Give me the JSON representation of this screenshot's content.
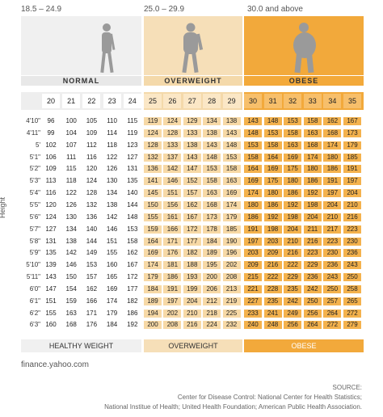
{
  "chart_data": {
    "type": "table",
    "ylabel": "Height",
    "categories": [
      {
        "range": "18.5 – 24.9",
        "label": "NORMAL",
        "footer": "HEALTHY WEIGHT",
        "color": "#f0f0f0",
        "header_color": "#e8e8e8",
        "cell_color": "#ffffff"
      },
      {
        "range": "25.0 – 29.9",
        "label": "OVERWEIGHT",
        "footer": "OVERWEIGHT",
        "color": "#f6dfb8",
        "header_color": "#f4d9aa",
        "cell_color": "#f7d9a6"
      },
      {
        "range": "30.0 and above",
        "label": "OBESE",
        "footer": "OBESE",
        "color": "#f2a93b",
        "header_color": "#f3a93a",
        "cell_color": "#f4b24d"
      }
    ],
    "bmi_values": [
      20,
      21,
      22,
      23,
      24,
      25,
      26,
      27,
      28,
      29,
      30,
      31,
      32,
      33,
      34,
      35
    ],
    "heights": [
      "4'10\"",
      "4'11\"",
      "5'",
      "5'1\"",
      "5'2\"",
      "5'3\"",
      "5'4\"",
      "5'5\"",
      "5'6\"",
      "5'7\"",
      "5'8\"",
      "5'9\"",
      "5'10\"",
      "5'11\"",
      "6'0\"",
      "6'1\"",
      "6'2\"",
      "6'3\""
    ],
    "weights": [
      [
        96,
        100,
        105,
        110,
        115,
        119,
        124,
        129,
        134,
        138,
        143,
        148,
        153,
        158,
        162,
        167
      ],
      [
        99,
        104,
        109,
        114,
        119,
        124,
        128,
        133,
        138,
        143,
        148,
        153,
        158,
        163,
        168,
        173
      ],
      [
        102,
        107,
        112,
        118,
        123,
        128,
        133,
        138,
        143,
        148,
        153,
        158,
        163,
        168,
        174,
        179
      ],
      [
        106,
        111,
        116,
        122,
        127,
        132,
        137,
        143,
        148,
        153,
        158,
        164,
        169,
        174,
        180,
        185
      ],
      [
        109,
        115,
        120,
        126,
        131,
        136,
        142,
        147,
        153,
        158,
        164,
        169,
        175,
        180,
        186,
        191
      ],
      [
        113,
        118,
        124,
        130,
        135,
        141,
        146,
        152,
        158,
        163,
        169,
        175,
        180,
        186,
        191,
        197
      ],
      [
        116,
        122,
        128,
        134,
        140,
        145,
        151,
        157,
        163,
        169,
        174,
        180,
        186,
        192,
        197,
        204
      ],
      [
        120,
        126,
        132,
        138,
        144,
        150,
        156,
        162,
        168,
        174,
        180,
        186,
        192,
        198,
        204,
        210
      ],
      [
        124,
        130,
        136,
        142,
        148,
        155,
        161,
        167,
        173,
        179,
        186,
        192,
        198,
        204,
        210,
        216
      ],
      [
        127,
        134,
        140,
        146,
        153,
        159,
        166,
        172,
        178,
        185,
        191,
        198,
        204,
        211,
        217,
        223
      ],
      [
        131,
        138,
        144,
        151,
        158,
        164,
        171,
        177,
        184,
        190,
        197,
        203,
        210,
        216,
        223,
        230
      ],
      [
        135,
        142,
        149,
        155,
        162,
        169,
        176,
        182,
        189,
        196,
        203,
        209,
        216,
        223,
        230,
        236
      ],
      [
        139,
        146,
        153,
        160,
        167,
        174,
        181,
        188,
        195,
        202,
        209,
        216,
        222,
        229,
        236,
        243
      ],
      [
        143,
        150,
        157,
        165,
        172,
        179,
        186,
        193,
        200,
        208,
        215,
        222,
        229,
        236,
        243,
        250
      ],
      [
        147,
        154,
        162,
        169,
        177,
        184,
        191,
        199,
        206,
        213,
        221,
        228,
        235,
        242,
        250,
        258
      ],
      [
        151,
        159,
        166,
        174,
        182,
        189,
        197,
        204,
        212,
        219,
        227,
        235,
        242,
        250,
        257,
        265
      ],
      [
        155,
        163,
        171,
        179,
        186,
        194,
        202,
        210,
        218,
        225,
        233,
        241,
        249,
        256,
        264,
        272
      ],
      [
        160,
        168,
        176,
        184,
        192,
        200,
        208,
        216,
        224,
        232,
        240,
        248,
        256,
        264,
        272,
        279
      ]
    ]
  },
  "footer": {
    "site": "finance.yahoo.com",
    "source_title": "SOURCE:",
    "source_line1": "Center for Disease Control: National Center for Health Statistics;",
    "source_line2": "National Institue of Health; United Health Foundation; American Public Health Association."
  }
}
